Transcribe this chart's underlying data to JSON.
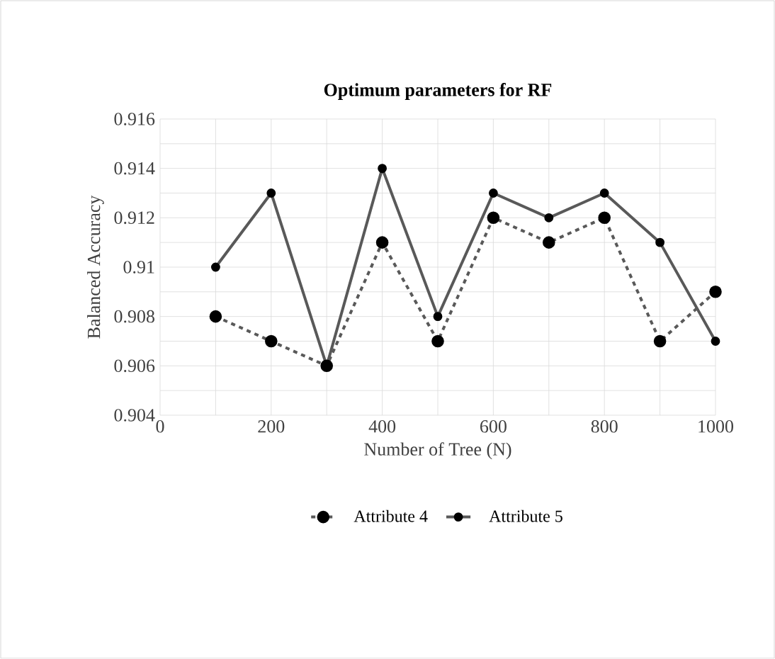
{
  "chart_data": {
    "type": "line",
    "title": "Optimum parameters for RF",
    "xlabel": "Number of Tree (N)",
    "ylabel": "Balanced Accuracy",
    "x": [
      100,
      200,
      300,
      400,
      500,
      600,
      700,
      800,
      900,
      1000
    ],
    "series": [
      {
        "name": "Attribute 4",
        "color": "#595959",
        "line_style": "dashed",
        "values": [
          0.908,
          0.907,
          0.906,
          0.911,
          0.907,
          0.912,
          0.911,
          0.912,
          0.907,
          0.909
        ]
      },
      {
        "name": "Attribute 5",
        "color": "#595959",
        "line_style": "solid",
        "values": [
          0.91,
          0.913,
          0.906,
          0.914,
          0.908,
          0.913,
          0.912,
          0.913,
          0.911,
          0.907
        ]
      }
    ],
    "xlim": [
      0,
      1000
    ],
    "xticks": [
      0,
      200,
      400,
      600,
      800,
      1000
    ],
    "ylim": [
      0.904,
      0.916
    ],
    "yticks": [
      0.904,
      0.906,
      0.908,
      0.91,
      0.912,
      0.914,
      0.916
    ],
    "grid": true,
    "legend": "bottom",
    "marker": "circle"
  }
}
